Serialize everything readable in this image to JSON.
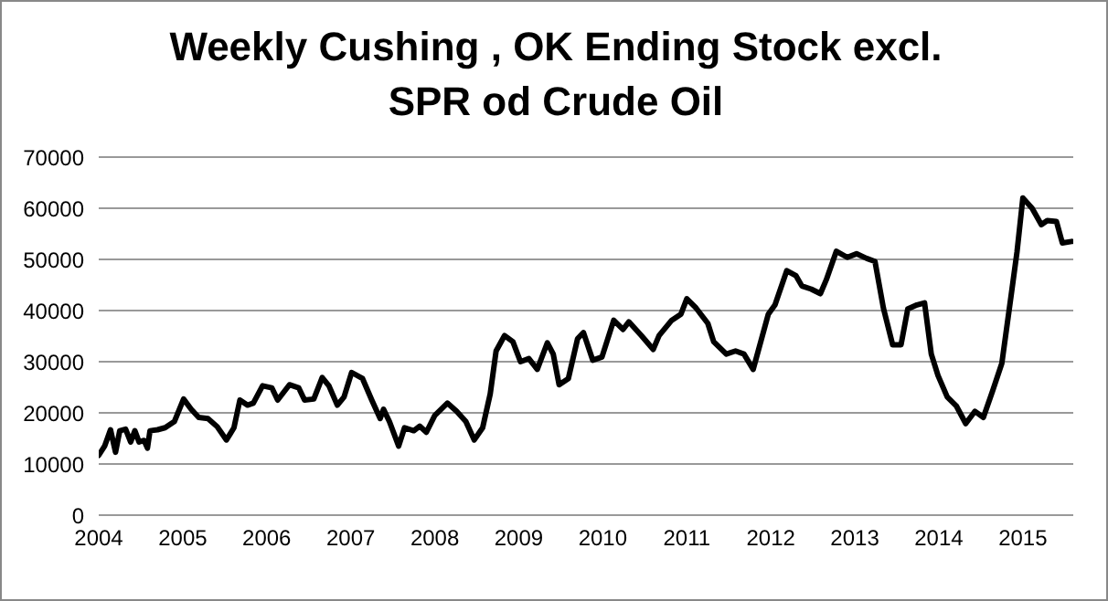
{
  "chart_data": {
    "type": "line",
    "title": "Weekly Cushing , OK Ending Stock excl. SPR od Crude Oil",
    "x": [
      2004.0,
      2004.07,
      2004.14,
      2004.2,
      2004.25,
      2004.32,
      2004.38,
      2004.43,
      2004.48,
      2004.54,
      2004.58,
      2004.61,
      2004.7,
      2004.79,
      2004.9,
      2005.01,
      2005.1,
      2005.19,
      2005.3,
      2005.41,
      2005.52,
      2005.61,
      2005.68,
      2005.77,
      2005.84,
      2005.95,
      2006.06,
      2006.13,
      2006.27,
      2006.38,
      2006.45,
      2006.56,
      2006.66,
      2006.74,
      2006.84,
      2006.92,
      2007.01,
      2007.14,
      2007.25,
      2007.35,
      2007.39,
      2007.46,
      2007.57,
      2007.64,
      2007.75,
      2007.82,
      2007.9,
      2008.0,
      2008.15,
      2008.26,
      2008.37,
      2008.47,
      2008.57,
      2008.66,
      2008.73,
      2008.83,
      2008.93,
      2009.02,
      2009.12,
      2009.22,
      2009.34,
      2009.41,
      2009.48,
      2009.59,
      2009.7,
      2009.77,
      2009.88,
      2009.99,
      2010.13,
      2010.24,
      2010.31,
      2010.46,
      2010.6,
      2010.67,
      2010.82,
      2010.93,
      2011.0,
      2011.11,
      2011.25,
      2011.32,
      2011.47,
      2011.58,
      2011.68,
      2011.79,
      2011.86,
      2011.97,
      2012.05,
      2012.19,
      2012.3,
      2012.37,
      2012.48,
      2012.59,
      2012.66,
      2012.78,
      2012.91,
      2013.02,
      2013.14,
      2013.24,
      2013.34,
      2013.45,
      2013.55,
      2013.63,
      2013.74,
      2013.83,
      2013.91,
      2013.99,
      2014.1,
      2014.21,
      2014.32,
      2014.43,
      2014.53,
      2014.64,
      2014.75,
      2014.86,
      2014.93,
      2015.0,
      2015.11,
      2015.22,
      2015.29,
      2015.4,
      2015.47,
      2015.58
    ],
    "series": [
      {
        "color": "#000000",
        "values": [
          11700,
          13500,
          16700,
          12300,
          16500,
          16800,
          14300,
          16500,
          14300,
          14600,
          13100,
          16500,
          16700,
          17100,
          18300,
          22700,
          20700,
          19100,
          18900,
          17300,
          14700,
          17100,
          22500,
          21500,
          21900,
          25300,
          24900,
          22500,
          25500,
          24900,
          22500,
          22700,
          26900,
          25300,
          21500,
          23100,
          27900,
          26700,
          22500,
          18900,
          20700,
          18300,
          13500,
          17100,
          16500,
          17400,
          16200,
          19500,
          21900,
          20300,
          18300,
          14700,
          17100,
          23700,
          32100,
          35100,
          33900,
          30000,
          30600,
          28500,
          33700,
          31500,
          25500,
          26700,
          34500,
          35700,
          30300,
          30900,
          38100,
          36300,
          37800,
          35100,
          32400,
          35100,
          38100,
          39300,
          42300,
          40500,
          37500,
          33900,
          31500,
          32100,
          31500,
          28500,
          32700,
          39300,
          41100,
          47800,
          46800,
          44800,
          44200,
          43300,
          46000,
          51600,
          50400,
          51100,
          50200,
          49600,
          40500,
          33300,
          33300,
          40300,
          41100,
          41500,
          31500,
          27300,
          23100,
          21300,
          17900,
          20300,
          19100,
          24300,
          29700,
          42900,
          51400,
          62000,
          60000,
          56800,
          57600,
          57400,
          53200,
          53500
        ]
      }
    ],
    "xlim": [
      2004,
      2015.6
    ],
    "xticks": [
      2004,
      2005,
      2006,
      2007,
      2008,
      2009,
      2010,
      2011,
      2012,
      2013,
      2014,
      2015
    ],
    "ylim": [
      0,
      70000
    ],
    "yticks": [
      0,
      10000,
      20000,
      30000,
      40000,
      50000,
      60000,
      70000
    ],
    "grid": "y",
    "marker": "none",
    "line_style": "solid",
    "legend": false
  }
}
